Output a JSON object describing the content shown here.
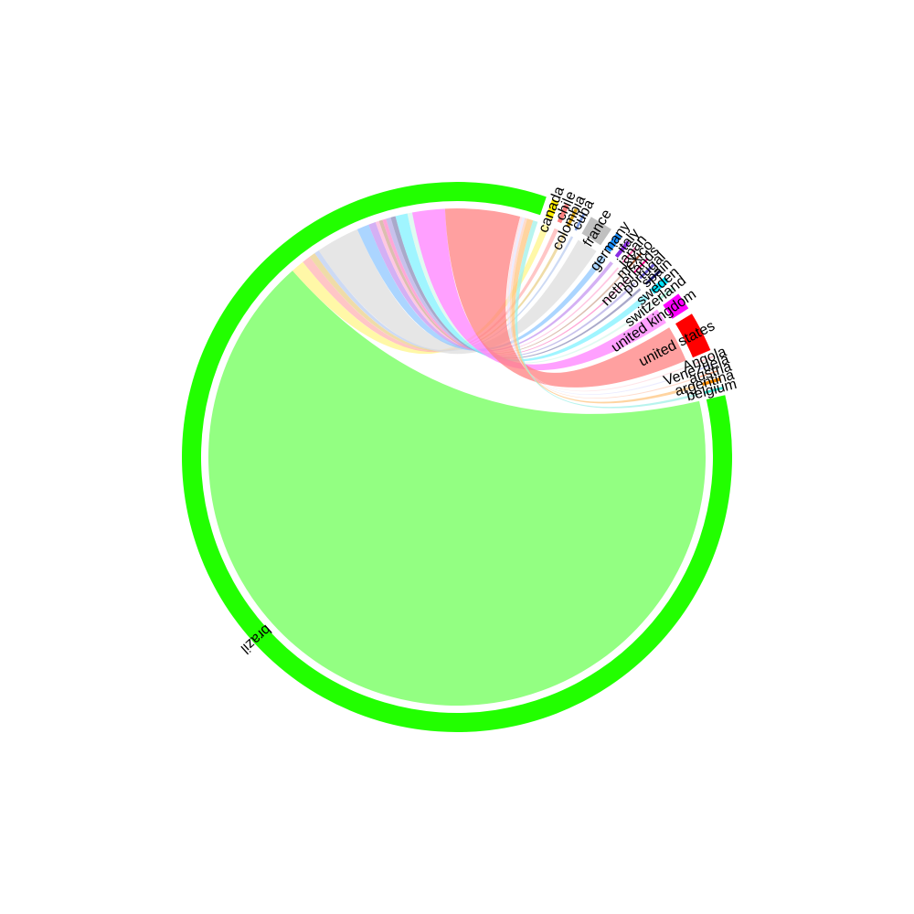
{
  "chart_data": {
    "type": "chord",
    "title": "",
    "segments": [
      {
        "name": "brazil",
        "value": 2195,
        "color": "#22ff00",
        "ribbon": "#93ff82"
      },
      {
        "name": "canada",
        "value": 11,
        "color": "#ffee00",
        "ribbon": "#fff58a"
      },
      {
        "name": "chile",
        "value": 7,
        "color": "#ff8080",
        "ribbon": "#ffb3b3"
      },
      {
        "name": "colombia",
        "value": 5,
        "color": "#d4a017",
        "ribbon": "#ead08b"
      },
      {
        "name": "cuba",
        "value": 4,
        "color": "#7b9ae0",
        "ribbon": "#bccdf0"
      },
      {
        "name": "france",
        "value": 36,
        "color": "#c0c0c0",
        "ribbon": "#dddddd"
      },
      {
        "name": "germany",
        "value": 10,
        "color": "#1e90ff",
        "ribbon": "#8fc7ff"
      },
      {
        "name": "italy",
        "value": 6,
        "color": "#8a2be2",
        "ribbon": "#c595f0"
      },
      {
        "name": "japan",
        "value": 3,
        "color": "#ff69b4",
        "ribbon": "#ffb4da"
      },
      {
        "name": "mexico",
        "value": 3,
        "color": "#a0522d",
        "ribbon": "#d0a896"
      },
      {
        "name": "netherlands",
        "value": 3,
        "color": "#ff1493",
        "ribbon": "#ff8ac9"
      },
      {
        "name": "portugal",
        "value": 4,
        "color": "#6a5acd",
        "ribbon": "#b4ace6"
      },
      {
        "name": "spain",
        "value": 4,
        "color": "#191970",
        "ribbon": "#8c8cb8"
      },
      {
        "name": "sweden",
        "value": 10,
        "color": "#00e5ff",
        "ribbon": "#80f2ff"
      },
      {
        "name": "switzerland",
        "value": 4,
        "color": "#aef0d8",
        "ribbon": "#d6f8ec"
      },
      {
        "name": "united kingdom",
        "value": 27,
        "color": "#ff00ff",
        "ribbon": "#ff80ff"
      },
      {
        "name": "united states",
        "value": 62,
        "color": "#ff0000",
        "ribbon": "#ff8080"
      },
      {
        "name": "Angola",
        "value": 2,
        "color": "#ffb6c1",
        "ribbon": "#ffdbe0"
      },
      {
        "name": "Venezuela",
        "value": 2,
        "color": "#c8c8ff",
        "ribbon": "#e4e4ff"
      },
      {
        "name": "austria",
        "value": 2,
        "color": "#ffa07a",
        "ribbon": "#ffd0bc"
      },
      {
        "name": "argentina",
        "value": 5,
        "color": "#ff8c00",
        "ribbon": "#ffc680"
      },
      {
        "name": "belgium",
        "value": 4,
        "color": "#40e0d0",
        "ribbon": "#a0f0e8"
      }
    ]
  }
}
